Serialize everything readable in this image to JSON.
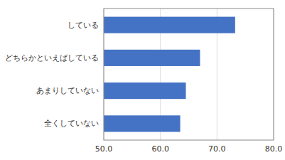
{
  "chart_data": {
    "type": "bar",
    "orientation": "horizontal",
    "categories": [
      "全くしていない",
      "あまりしていない",
      "どちらかといえばしている",
      "している"
    ],
    "values": [
      63.5,
      64.5,
      67.0,
      73.2
    ],
    "color": "#4472C4",
    "xlim": [
      50.0,
      80.0
    ],
    "xticks": [
      {
        "value": 50.0,
        "label": "50.0"
      },
      {
        "value": 60.0,
        "label": "60.0"
      },
      {
        "value": 70.0,
        "label": "70.0"
      },
      {
        "value": 80.0,
        "label": "80.0"
      }
    ],
    "grid": true
  }
}
